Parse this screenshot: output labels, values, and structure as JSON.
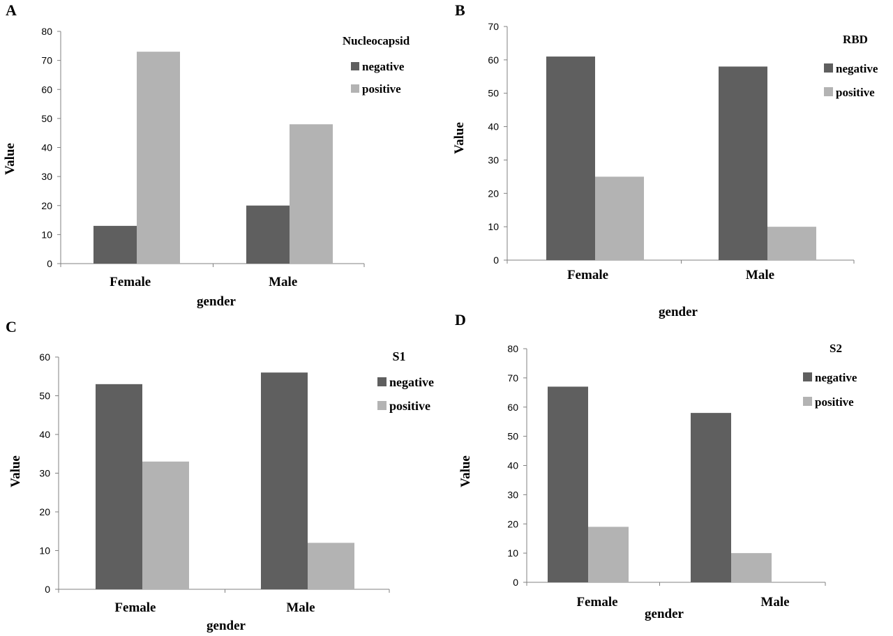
{
  "figure": {
    "colors": {
      "negative": "#5f5f5f",
      "positive": "#b3b3b3"
    },
    "panel_labels": [
      "A",
      "B",
      "C",
      "D"
    ]
  },
  "chart_data": [
    {
      "type": "bar",
      "panel": "A",
      "title": "Nucleocapsid",
      "xlabel": "gender",
      "ylabel": "Value",
      "categories": [
        "Female",
        "Male"
      ],
      "ylim": [
        0,
        80
      ],
      "yticks": [
        0,
        10,
        20,
        30,
        40,
        50,
        60,
        70,
        80
      ],
      "legend_position": "top-right",
      "grid": false,
      "series": [
        {
          "name": "negative",
          "values": [
            13,
            20
          ]
        },
        {
          "name": "positive",
          "values": [
            73,
            48
          ]
        }
      ]
    },
    {
      "type": "bar",
      "panel": "B",
      "title": "RBD",
      "xlabel": "gender",
      "ylabel": "Value",
      "categories": [
        "Female",
        "Male"
      ],
      "ylim": [
        0,
        70
      ],
      "yticks": [
        0,
        10,
        20,
        30,
        40,
        50,
        60,
        70
      ],
      "legend_position": "top-right",
      "grid": false,
      "series": [
        {
          "name": "negative",
          "values": [
            61,
            58
          ]
        },
        {
          "name": "positive",
          "values": [
            25,
            10
          ]
        }
      ]
    },
    {
      "type": "bar",
      "panel": "C",
      "title": "S1",
      "xlabel": "gender",
      "ylabel": "Value",
      "categories": [
        "Female",
        "Male"
      ],
      "ylim": [
        0,
        60
      ],
      "yticks": [
        0,
        10,
        20,
        30,
        40,
        50,
        60
      ],
      "legend_position": "top-right",
      "grid": false,
      "series": [
        {
          "name": "negative",
          "values": [
            53,
            56
          ]
        },
        {
          "name": "positive",
          "values": [
            33,
            12
          ]
        }
      ]
    },
    {
      "type": "bar",
      "panel": "D",
      "title": "S2",
      "xlabel": "gender",
      "ylabel": "Value",
      "categories": [
        "Female",
        "Male"
      ],
      "ylim": [
        0,
        80
      ],
      "yticks": [
        0,
        10,
        20,
        30,
        40,
        50,
        60,
        70,
        80
      ],
      "legend_position": "top-right",
      "grid": false,
      "series": [
        {
          "name": "negative",
          "values": [
            67,
            58
          ]
        },
        {
          "name": "positive",
          "values": [
            19,
            10
          ]
        }
      ]
    }
  ]
}
